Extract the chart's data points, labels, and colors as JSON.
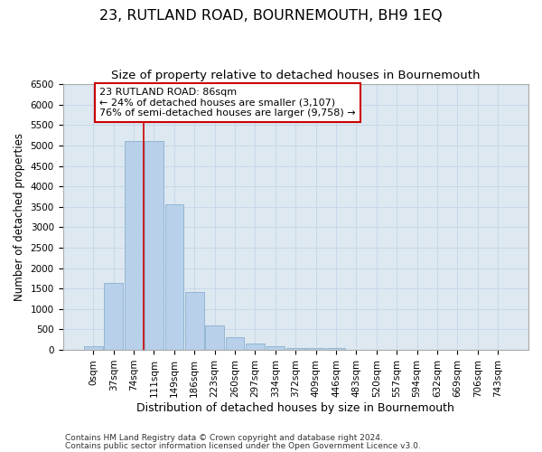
{
  "title": "23, RUTLAND ROAD, BOURNEMOUTH, BH9 1EQ",
  "subtitle": "Size of property relative to detached houses in Bournemouth",
  "xlabel": "Distribution of detached houses by size in Bournemouth",
  "ylabel": "Number of detached properties",
  "footer_line1": "Contains HM Land Registry data © Crown copyright and database right 2024.",
  "footer_line2": "Contains public sector information licensed under the Open Government Licence v3.0.",
  "bin_labels": [
    "0sqm",
    "37sqm",
    "74sqm",
    "111sqm",
    "149sqm",
    "186sqm",
    "223sqm",
    "260sqm",
    "297sqm",
    "334sqm",
    "372sqm",
    "409sqm",
    "446sqm",
    "483sqm",
    "520sqm",
    "557sqm",
    "594sqm",
    "632sqm",
    "669sqm",
    "706sqm",
    "743sqm"
  ],
  "bar_values": [
    80,
    1630,
    5100,
    5100,
    3570,
    1420,
    590,
    305,
    150,
    80,
    50,
    55,
    55,
    0,
    0,
    0,
    0,
    0,
    0,
    0,
    0
  ],
  "bar_color": "#b8d0ea",
  "bar_edgecolor": "#8ab0d0",
  "vline_x": 2.5,
  "vline_color": "#cc0000",
  "annotation_text": "23 RUTLAND ROAD: 86sqm\n← 24% of detached houses are smaller (3,107)\n76% of semi-detached houses are larger (9,758) →",
  "annotation_box_facecolor": "#ffffff",
  "annotation_box_edgecolor": "#cc0000",
  "ylim": [
    0,
    6500
  ],
  "yticks": [
    0,
    500,
    1000,
    1500,
    2000,
    2500,
    3000,
    3500,
    4000,
    4500,
    5000,
    5500,
    6000,
    6500
  ],
  "grid_color": "#c8d8ea",
  "background_color": "#dde8f0",
  "title_fontsize": 11.5,
  "subtitle_fontsize": 9.5,
  "xlabel_fontsize": 9,
  "ylabel_fontsize": 8.5,
  "tick_fontsize": 7.5,
  "annot_fontsize": 8,
  "footer_fontsize": 6.5
}
